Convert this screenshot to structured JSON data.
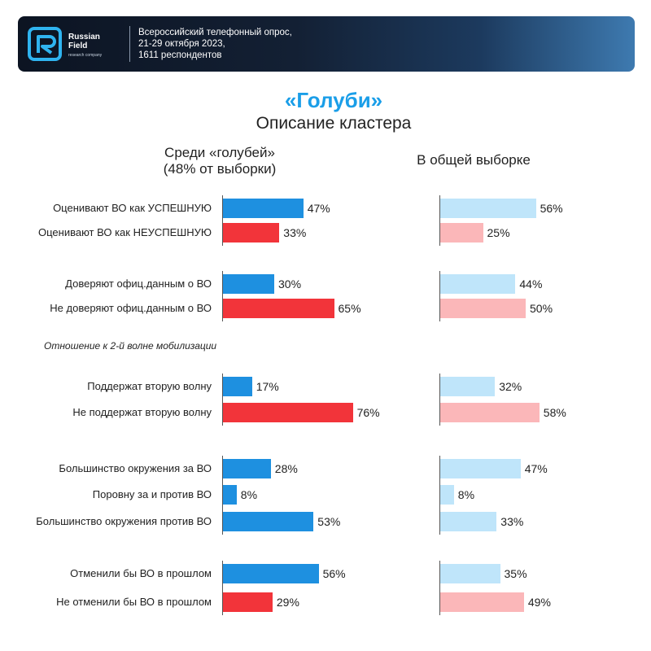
{
  "header": {
    "brand_line1": "Russian",
    "brand_line2": "Field",
    "brand_sub": "research company",
    "survey_line1": "Всероссийский телефонный опрос,",
    "survey_line2": "21-29 октября 2023,",
    "survey_line3": "1611 респондентов"
  },
  "title": "«Голуби»",
  "subtitle": "Описание кластера",
  "col_left_line1": "Среди «голубей»",
  "col_left_line2": "(48% от выборки)",
  "col_right": "В общей выборке",
  "section_note": "Отношение к 2-й волне мобилизации",
  "colors": {
    "blue": "#1e90e0",
    "red": "#f2343a",
    "light_blue": "#bfe5fa",
    "light_red": "#fbb7b9",
    "title": "#1a9ee8"
  },
  "chart_data": {
    "type": "bar",
    "orientation": "horizontal",
    "unit": "%",
    "categories": [
      "Оценивают ВО как УСПЕШНУЮ",
      "Оценивают ВО как НЕУСПЕШНУЮ",
      "Доверяют офиц.данным о ВО",
      "Не доверяют офиц.данным о ВО",
      "Поддержат вторую волну",
      "Не поддержат вторую волну",
      "Большинство окружения за ВО",
      "Поровну за и против ВО",
      "Большинство окружения против ВО",
      "Отменили бы ВО в прошлом",
      "Не отменили бы ВО в прошлом"
    ],
    "groups": [
      [
        0,
        1
      ],
      [
        2,
        3
      ],
      [
        4,
        5
      ],
      [
        6,
        7,
        8
      ],
      [
        9,
        10
      ]
    ],
    "bar_colors": [
      "blue",
      "red",
      "blue",
      "red",
      "blue",
      "red",
      "blue",
      "blue",
      "blue",
      "blue",
      "red"
    ],
    "series": [
      {
        "name": "Среди «голубей» (48% от выборки)",
        "values": [
          47,
          33,
          30,
          65,
          17,
          76,
          28,
          8,
          53,
          56,
          29
        ]
      },
      {
        "name": "В общей выборке",
        "values": [
          56,
          25,
          44,
          50,
          32,
          58,
          47,
          8,
          33,
          35,
          49
        ]
      }
    ]
  }
}
